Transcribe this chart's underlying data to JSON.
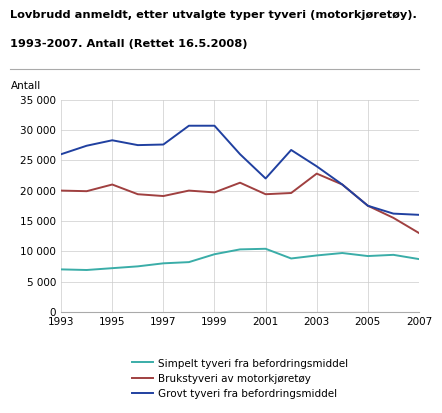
{
  "title_line1": "Lovbrudd anmeldt, etter utvalgte typer tyveri (motorkjøretøy).",
  "title_line2": "1993-2007. Antall (Rettet 16.5.2008)",
  "antall_label": "Antall",
  "years": [
    1993,
    1994,
    1995,
    1996,
    1997,
    1998,
    1999,
    2000,
    2001,
    2002,
    2003,
    2004,
    2005,
    2006,
    2007
  ],
  "simpelt": [
    7000,
    6900,
    7200,
    7500,
    8000,
    8200,
    9500,
    10300,
    10400,
    8800,
    9300,
    9700,
    9200,
    9400,
    8700
  ],
  "brukstyveri": [
    20000,
    19900,
    21000,
    19400,
    19100,
    20000,
    19700,
    21300,
    19400,
    19600,
    22800,
    21000,
    17500,
    15500,
    13000
  ],
  "grovt": [
    26000,
    27400,
    28300,
    27500,
    27600,
    30700,
    30700,
    26000,
    22000,
    26700,
    24000,
    21000,
    17500,
    16200,
    16000
  ],
  "simpelt_color": "#3aada8",
  "brukstyveri_color": "#a04040",
  "grovt_color": "#2040a0",
  "legend_labels": [
    "Simpelt tyveri fra befordringsmiddel",
    "Brukstyveri av motorkjøretøy",
    "Grovt tyveri fra befordringsmiddel"
  ],
  "ylim": [
    0,
    35000
  ],
  "yticks": [
    0,
    5000,
    10000,
    15000,
    20000,
    25000,
    30000,
    35000
  ],
  "xticks": [
    1993,
    1995,
    1997,
    1999,
    2001,
    2003,
    2005,
    2007
  ],
  "background_color": "#ffffff",
  "grid_color": "#cccccc"
}
